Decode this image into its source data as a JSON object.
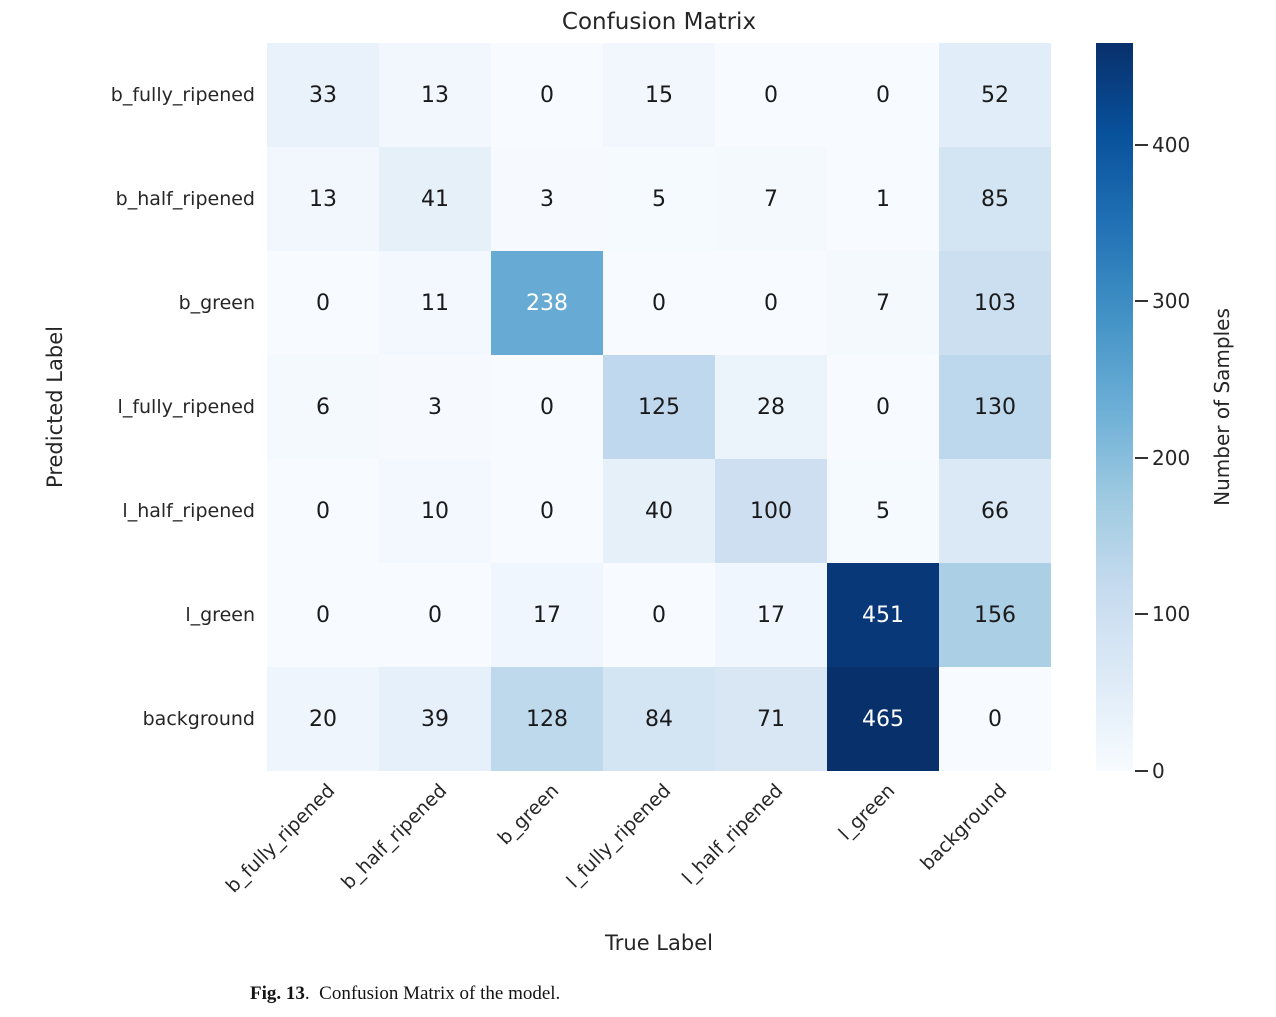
{
  "figure": {
    "caption_label": "Fig. 13",
    "caption_text": ".  Confusion Matrix of the model."
  },
  "chart_data": {
    "type": "heatmap",
    "title": "Confusion Matrix",
    "xlabel": "True Label",
    "ylabel": "Predicted Label",
    "x_categories": [
      "b_fully_ripened",
      "b_half_ripened",
      "b_green",
      "l_fully_ripened",
      "l_half_ripened",
      "l_green",
      "background"
    ],
    "y_categories": [
      "b_fully_ripened",
      "b_half_ripened",
      "b_green",
      "l_fully_ripened",
      "l_half_ripened",
      "l_green",
      "background"
    ],
    "matrix": [
      [
        33,
        13,
        0,
        15,
        0,
        0,
        52
      ],
      [
        13,
        41,
        3,
        5,
        7,
        1,
        85
      ],
      [
        0,
        11,
        238,
        0,
        0,
        7,
        103
      ],
      [
        6,
        3,
        0,
        125,
        28,
        0,
        130
      ],
      [
        0,
        10,
        0,
        40,
        100,
        5,
        66
      ],
      [
        0,
        0,
        17,
        0,
        17,
        451,
        156
      ],
      [
        20,
        39,
        128,
        84,
        71,
        465,
        0
      ]
    ],
    "vmin": 0,
    "vmax": 465,
    "colormap": "Blues",
    "colormap_hex": [
      "#f7fbff",
      "#deebf7",
      "#c6dbef",
      "#9ecae1",
      "#6baed6",
      "#4292c6",
      "#2171b5",
      "#08519c",
      "#08306b"
    ],
    "annotation_color_dark": "#1a1a1a",
    "annotation_color_light": "#ffffff",
    "colorbar": {
      "label": "Number of Samples",
      "ticks": [
        0,
        100,
        200,
        300,
        400
      ],
      "position": "right"
    },
    "grid": false,
    "legend": false
  }
}
